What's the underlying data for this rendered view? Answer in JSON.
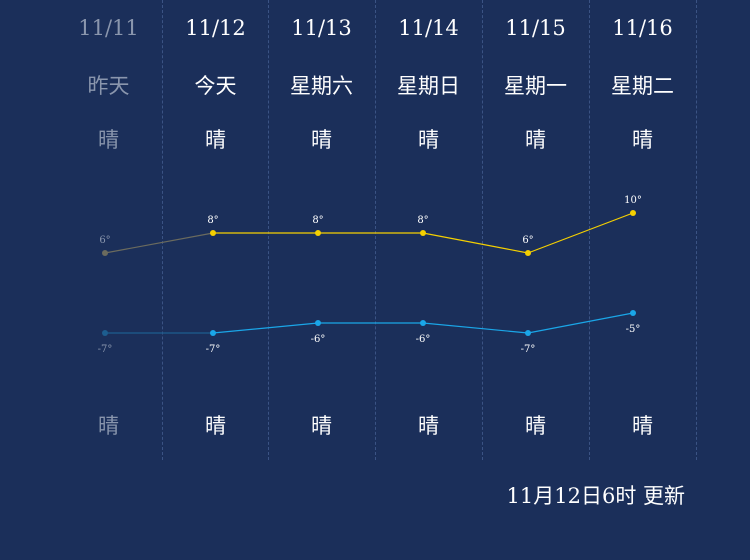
{
  "days": [
    {
      "date": "11/11",
      "name": "昨天",
      "weather_day": "晴",
      "weather_night": "晴",
      "past": true
    },
    {
      "date": "11/12",
      "name": "今天",
      "weather_day": "晴",
      "weather_night": "晴",
      "past": false
    },
    {
      "date": "11/13",
      "name": "星期六",
      "weather_day": "晴",
      "weather_night": "晴",
      "past": false
    },
    {
      "date": "11/14",
      "name": "星期日",
      "weather_day": "晴",
      "weather_night": "晴",
      "past": false
    },
    {
      "date": "11/15",
      "name": "星期一",
      "weather_day": "晴",
      "weather_night": "晴",
      "past": false
    },
    {
      "date": "11/16",
      "name": "星期二",
      "weather_day": "晴",
      "weather_night": "晴",
      "past": false
    }
  ],
  "chart_data": {
    "type": "line",
    "categories": [
      "11/11",
      "11/12",
      "11/13",
      "11/14",
      "11/15",
      "11/16"
    ],
    "series": [
      {
        "values": [
          6,
          8,
          8,
          8,
          6,
          10
        ],
        "labels": [
          "6°",
          "8°",
          "8°",
          "8°",
          "6°",
          "10°"
        ],
        "color": "#f5d000",
        "past_color": "#6b6b5e"
      },
      {
        "values": [
          -7,
          -7,
          -6,
          -6,
          -7,
          -5
        ],
        "labels": [
          "-7°",
          "-7°",
          "-6°",
          "-6°",
          "-7°",
          "-5°"
        ],
        "color": "#1aa6e8",
        "past_color": "#1d5d8f"
      }
    ],
    "grid": false,
    "legend": "none"
  },
  "footer": {
    "updated": "11月12日6时 更新"
  },
  "colors": {
    "background": "#1b2f5a",
    "past_text": "#8a96ad",
    "text": "#ffffff"
  }
}
